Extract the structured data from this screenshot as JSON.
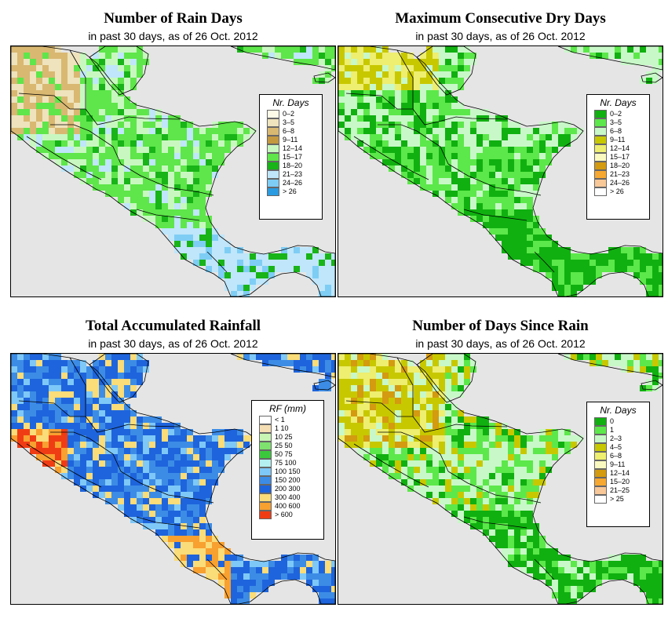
{
  "panels": [
    {
      "id": "rain-days",
      "title": "Number of Rain Days",
      "subtitle": "in past 30 days, as of  26 Oct. 2012",
      "legend": {
        "title": "Nr. Days",
        "entries": [
          {
            "label": "0–2",
            "color": "#fdfae8"
          },
          {
            "label": "3–5",
            "color": "#eee3bc"
          },
          {
            "label": "6–8",
            "color": "#d9b872"
          },
          {
            "label": "9–11",
            "color": "#c4983e"
          },
          {
            "label": "12–14",
            "color": "#c8f8c0"
          },
          {
            "label": "15–17",
            "color": "#5ee64a"
          },
          {
            "label": "18–20",
            "color": "#18b418"
          },
          {
            "label": "21–23",
            "color": "#bfe6fa"
          },
          {
            "label": "24–26",
            "color": "#7ecdf5"
          },
          {
            "label": "> 26",
            "color": "#2a9be0"
          }
        ]
      }
    },
    {
      "id": "max-dry-days",
      "title": "Maximum Consecutive Dry Days",
      "subtitle": "in past 30 days, as of  26 Oct. 2012",
      "legend": {
        "title": "Nr. Days",
        "entries": [
          {
            "label": "0–2",
            "color": "#10b010"
          },
          {
            "label": "3–5",
            "color": "#5ce84a"
          },
          {
            "label": "6–8",
            "color": "#c8f8c8"
          },
          {
            "label": "9–11",
            "color": "#c8c800"
          },
          {
            "label": "12–14",
            "color": "#eeee70"
          },
          {
            "label": "15–17",
            "color": "#fafac0"
          },
          {
            "label": "18–20",
            "color": "#d49a10"
          },
          {
            "label": "21–23",
            "color": "#f7a830"
          },
          {
            "label": "24–26",
            "color": "#f8c898"
          },
          {
            "label": "> 26",
            "color": "#ffffff"
          }
        ]
      }
    },
    {
      "id": "total-rainfall",
      "title": "Total Accumulated Rainfall",
      "subtitle": "in past 30 days, as of  26 Oct. 2012",
      "legend": {
        "title": "RF (mm)",
        "entries": [
          {
            "label": "< 1",
            "color": "#ffffff"
          },
          {
            "label": "1  10",
            "color": "#f5deb3"
          },
          {
            "label": "10  25",
            "color": "#c8f5b4"
          },
          {
            "label": "25  50",
            "color": "#7ee26e"
          },
          {
            "label": "50  75",
            "color": "#3cc83c"
          },
          {
            "label": "75  100",
            "color": "#b4f0f0"
          },
          {
            "label": "100  150",
            "color": "#7ec8f8"
          },
          {
            "label": "150  200",
            "color": "#3c8ce6"
          },
          {
            "label": "200  300",
            "color": "#1e64dc"
          },
          {
            "label": "300  400",
            "color": "#fadc78"
          },
          {
            "label": "400  600",
            "color": "#f8a030"
          },
          {
            "label": "> 600",
            "color": "#f03c14"
          }
        ]
      }
    },
    {
      "id": "days-since-rain",
      "title": "Number of Days Since Rain",
      "subtitle": "in past 30 days, as of  26 Oct. 2012",
      "legend": {
        "title": "Nr. Days",
        "entries": [
          {
            "label": "0",
            "color": "#10b010"
          },
          {
            "label": "1",
            "color": "#5ce84a"
          },
          {
            "label": "2–3",
            "color": "#c8f8c8"
          },
          {
            "label": "4–5",
            "color": "#c8c800"
          },
          {
            "label": "6–8",
            "color": "#eeee70"
          },
          {
            "label": "9–11",
            "color": "#fafac0"
          },
          {
            "label": "12–14",
            "color": "#d49a10"
          },
          {
            "label": "15–20",
            "color": "#f7a830"
          },
          {
            "label": "21–25",
            "color": "#f8c898"
          },
          {
            "label": "> 25",
            "color": "#ffffff"
          }
        ]
      }
    }
  ],
  "colors": {
    "ocean": "#e5e5e5",
    "border": "#000000"
  }
}
